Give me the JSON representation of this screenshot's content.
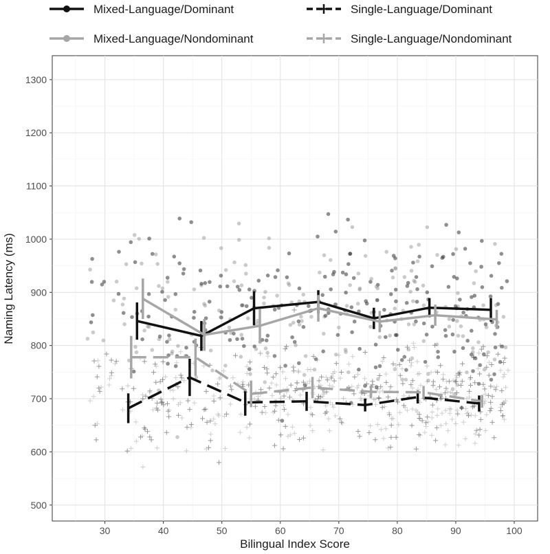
{
  "chart_data": {
    "type": "line",
    "title": "",
    "xlabel": "Bilingual Index Score",
    "ylabel": "Naming Latency (ms)",
    "xlim": [
      21,
      104
    ],
    "ylim": [
      470,
      1345
    ],
    "x_ticks": [
      30,
      40,
      50,
      60,
      70,
      80,
      90,
      100
    ],
    "y_ticks": [
      500,
      600,
      700,
      800,
      900,
      1000,
      1100,
      1200,
      1300
    ],
    "grid": true,
    "legend_position": "top",
    "series": [
      {
        "name": "Mixed-Language/Dominant",
        "color": "#111111",
        "dash": "solid",
        "marker": "circle",
        "x": [
          35.5,
          46.5,
          55.5,
          66.5,
          76,
          85.5,
          96
        ],
        "y": [
          846,
          818,
          870,
          882,
          851,
          871,
          867
        ],
        "err": [
          35,
          28,
          32,
          22,
          20,
          18,
          22
        ]
      },
      {
        "name": "Single-Language/Dominant",
        "color": "#111111",
        "dash": "dashed",
        "marker": "plus",
        "x": [
          34,
          44.5,
          54,
          64.5,
          74.5,
          83.5,
          94
        ],
        "y": [
          682,
          740,
          693,
          695,
          688,
          703,
          691
        ],
        "err": [
          28,
          35,
          25,
          18,
          12,
          12,
          15
        ]
      },
      {
        "name": "Mixed-Language/Nondominant",
        "color": "#a6a6a6",
        "dash": "solid",
        "marker": "circle",
        "x": [
          36.5,
          47,
          56.5,
          66.5,
          77,
          86.5,
          97
        ],
        "y": [
          888,
          820,
          837,
          870,
          845,
          857,
          849
        ],
        "err": [
          38,
          30,
          32,
          25,
          20,
          20,
          18
        ]
      },
      {
        "name": "Single-Language/Nondominant",
        "color": "#a6a6a6",
        "dash": "dashed",
        "marker": "plus",
        "x": [
          34.5,
          45.5,
          55,
          65.5,
          75.5,
          84.5,
          94.5
        ],
        "y": [
          778,
          778,
          709,
          721,
          713,
          712,
          695
        ],
        "err": [
          40,
          35,
          25,
          20,
          12,
          12,
          12
        ]
      }
    ]
  }
}
